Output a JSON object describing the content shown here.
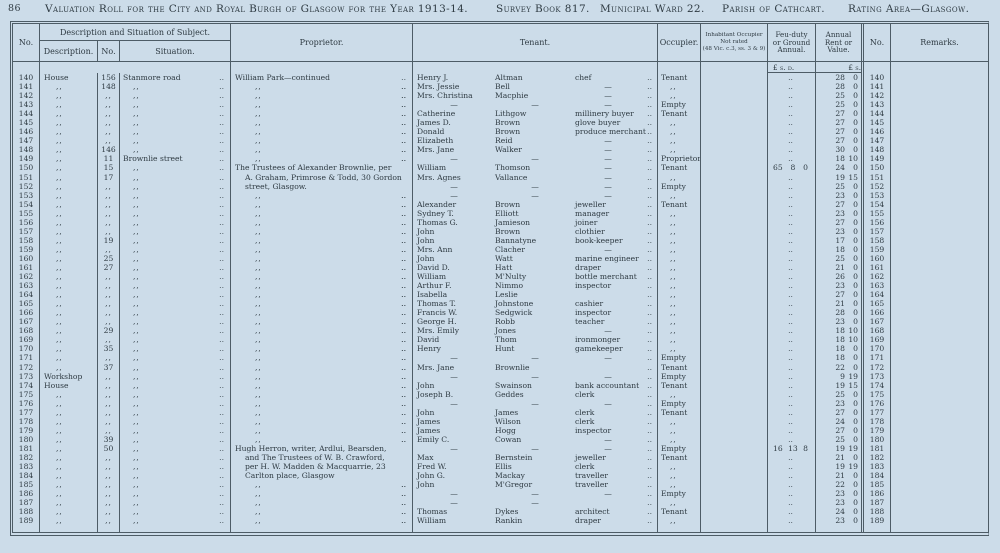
{
  "page": {
    "folio": "86",
    "title": "Valuation Roll for the City and Royal Burgh of Glasgow for the Year 1913-14.",
    "survey_book": "Survey Book 817.",
    "municipal_ward": "Municipal Ward 22.",
    "parish": "Parish of Cathcart.",
    "rating_area": "Rating Area—Glasgow."
  },
  "table": {
    "headers": {
      "no": "No.",
      "desc_group": "Description and Situation of Subject.",
      "description": "Description.",
      "street_no": "No.",
      "situation": "Situation.",
      "proprietor": "Proprietor.",
      "tenant": "Tenant.",
      "occupier": "Occupier.",
      "inhabitant": [
        "Inhabitant Occupier",
        "Not rated",
        "(48 Vic. c.3, ss. 3 & 9)"
      ],
      "feu": [
        "Feu-duty",
        "or Ground",
        "Annual."
      ],
      "annual": [
        "Annual",
        "Rent or",
        "Value."
      ],
      "no2": "No.",
      "remarks": "Remarks.",
      "feu_currency": "£ s. d.",
      "annual_currency": "£ s."
    },
    "rows": [
      {
        "n": "140",
        "d": "House",
        "sn": "156",
        "st": "Stanmore road",
        "pr": "William Park—continued",
        "pi": false,
        "pd": true,
        "t1": "Henry J.",
        "t2": "Altman",
        "t3": "chef",
        "oc": "Tenant",
        "feu": null,
        "rl": "28",
        "rs": "0"
      },
      {
        "n": "141",
        "d": ",,",
        "sn": "148",
        "st": ",,",
        "pr": null,
        "t1": "Mrs. Jessie",
        "t2": "Bell",
        "t3": "—",
        "oc": ",,",
        "feu": null,
        "rl": "28",
        "rs": "0"
      },
      {
        "n": "142",
        "d": ",,",
        "sn": ",,",
        "st": ",,",
        "pr": null,
        "t1": "Mrs. Christina",
        "t2": "Macphie",
        "t3": "—",
        "oc": ",,",
        "feu": null,
        "rl": "25",
        "rs": "0"
      },
      {
        "n": "143",
        "d": ",,",
        "sn": ",,",
        "st": ",,",
        "pr": null,
        "t1": "—",
        "t2": "—",
        "t3": "—",
        "oc": "Empty",
        "feu": null,
        "rl": "25",
        "rs": "0"
      },
      {
        "n": "144",
        "d": ",,",
        "sn": ",,",
        "st": ",,",
        "pr": null,
        "t1": "Catherine",
        "t2": "Lithgow",
        "t3": "millinery buyer",
        "oc": "Tenant",
        "feu": null,
        "rl": "27",
        "rs": "0"
      },
      {
        "n": "145",
        "d": ",,",
        "sn": ",,",
        "st": ",,",
        "pr": null,
        "t1": "James D.",
        "t2": "Brown",
        "t3": "glove buyer",
        "oc": ",,",
        "feu": null,
        "rl": "27",
        "rs": "0"
      },
      {
        "n": "146",
        "d": ",,",
        "sn": ",,",
        "st": ",,",
        "pr": null,
        "t1": "Donald",
        "t2": "Brown",
        "t3": "produce merchant",
        "oc": ",,",
        "feu": null,
        "rl": "27",
        "rs": "0"
      },
      {
        "n": "147",
        "d": ",,",
        "sn": ",,",
        "st": ",,",
        "pr": null,
        "t1": "Elizabeth",
        "t2": "Reid",
        "t3": "—",
        "oc": ",,",
        "feu": null,
        "rl": "27",
        "rs": "0"
      },
      {
        "n": "148",
        "d": ",,",
        "sn": "146",
        "st": ",,",
        "pr": null,
        "t1": "Mrs. Jane",
        "t2": "Walker",
        "t3": "—",
        "oc": ",,",
        "feu": null,
        "rl": "30",
        "rs": "0"
      },
      {
        "n": "149",
        "d": ",,",
        "sn": "11",
        "st": "Brownlie street",
        "pr": null,
        "t1": "—",
        "t2": "—",
        "t3": "—",
        "oc": "Proprietor",
        "feu": null,
        "rl": "18",
        "rs": "10"
      },
      {
        "n": "150",
        "d": ",,",
        "sn": "15",
        "st": ",,",
        "pr": "The Trustees of Alexander Brownlie, per",
        "pi": false,
        "pd": false,
        "t1": "William",
        "t2": "Thomson",
        "t3": "—",
        "oc": "Tenant",
        "feu": [
          "65",
          "8",
          "0"
        ],
        "rl": "24",
        "rs": "0"
      },
      {
        "n": "151",
        "d": ",,",
        "sn": "17",
        "st": ",,",
        "pr": "A. Graham, Primrose & Todd, 30 Gordon",
        "pi": true,
        "pd": false,
        "t1": "Mrs. Agnes",
        "t2": "Vallance",
        "t3": "—",
        "oc": ",,",
        "feu": null,
        "rl": "19",
        "rs": "15"
      },
      {
        "n": "152",
        "d": ",,",
        "sn": ",,",
        "st": ",,",
        "pr": "street, Glasgow.",
        "pi": true,
        "pd": false,
        "t1": "—",
        "t2": "—",
        "t3": "—",
        "oc": "Empty",
        "feu": null,
        "rl": "25",
        "rs": "0"
      },
      {
        "n": "153",
        "d": ",,",
        "sn": ",,",
        "st": ",,",
        "pr": null,
        "t1": "—",
        "t2": "—",
        "t3": "—",
        "oc": ",,",
        "feu": null,
        "rl": "23",
        "rs": "0"
      },
      {
        "n": "154",
        "d": ",,",
        "sn": ",,",
        "st": ",,",
        "pr": null,
        "t1": "Alexander",
        "t2": "Brown",
        "t3": "jeweller",
        "oc": "Tenant",
        "feu": null,
        "rl": "27",
        "rs": "0"
      },
      {
        "n": "155",
        "d": ",,",
        "sn": ",,",
        "st": ",,",
        "pr": null,
        "t1": "Sydney T.",
        "t2": "Elliott",
        "t3": "manager",
        "oc": ",,",
        "feu": null,
        "rl": "23",
        "rs": "0"
      },
      {
        "n": "156",
        "d": ",,",
        "sn": ",,",
        "st": ",,",
        "pr": null,
        "t1": "Thomas G.",
        "t2": "Jamieson",
        "t3": "joiner",
        "oc": ",,",
        "feu": null,
        "rl": "27",
        "rs": "0"
      },
      {
        "n": "157",
        "d": ",,",
        "sn": ",,",
        "st": ",,",
        "pr": null,
        "t1": "John",
        "t2": "Brown",
        "t3": "clothier",
        "oc": ",,",
        "feu": null,
        "rl": "23",
        "rs": "0"
      },
      {
        "n": "158",
        "d": ",,",
        "sn": "19",
        "st": ",,",
        "pr": null,
        "t1": "John",
        "t2": "Bannatyne",
        "t3": "book-keeper",
        "oc": ",,",
        "feu": null,
        "rl": "17",
        "rs": "0"
      },
      {
        "n": "159",
        "d": ",,",
        "sn": ",,",
        "st": ",,",
        "pr": null,
        "t1": "Mrs. Ann",
        "t2": "Clacher",
        "t3": "—",
        "oc": ",,",
        "feu": null,
        "rl": "18",
        "rs": "0"
      },
      {
        "n": "160",
        "d": ",,",
        "sn": "25",
        "st": ",,",
        "pr": null,
        "t1": "John",
        "t2": "Watt",
        "t3": "marine engineer",
        "oc": ",,",
        "feu": null,
        "rl": "25",
        "rs": "0"
      },
      {
        "n": "161",
        "d": ",,",
        "sn": "27",
        "st": ",,",
        "pr": null,
        "t1": "David D.",
        "t2": "Hatt",
        "t3": "draper",
        "oc": ",,",
        "feu": null,
        "rl": "21",
        "rs": "0"
      },
      {
        "n": "162",
        "d": ",,",
        "sn": ",,",
        "st": ",,",
        "pr": null,
        "t1": "William",
        "t2": "M'Nulty",
        "t3": "bottle merchant",
        "oc": ",,",
        "feu": null,
        "rl": "26",
        "rs": "0"
      },
      {
        "n": "163",
        "d": ",,",
        "sn": ",,",
        "st": ",,",
        "pr": null,
        "t1": "Arthur F.",
        "t2": "Nimmo",
        "t3": "inspector",
        "oc": ",,",
        "feu": null,
        "rl": "23",
        "rs": "0"
      },
      {
        "n": "164",
        "d": ",,",
        "sn": ",,",
        "st": ",,",
        "pr": null,
        "t1": "Isabella",
        "t2": "Leslie",
        "t3": "",
        "oc": ",,",
        "feu": null,
        "rl": "27",
        "rs": "0"
      },
      {
        "n": "165",
        "d": ",,",
        "sn": ",,",
        "st": ",,",
        "pr": null,
        "t1": "Thomas T.",
        "t2": "Johnstone",
        "t3": "cashier",
        "oc": ",,",
        "feu": null,
        "rl": "21",
        "rs": "0"
      },
      {
        "n": "166",
        "d": ",,",
        "sn": ",,",
        "st": ",,",
        "pr": null,
        "t1": "Francis W.",
        "t2": "Sedgwick",
        "t3": "inspector",
        "oc": ",,",
        "feu": null,
        "rl": "28",
        "rs": "0"
      },
      {
        "n": "167",
        "d": ",,",
        "sn": ",,",
        "st": ",,",
        "pr": null,
        "t1": "George H.",
        "t2": "Robb",
        "t3": "teacher",
        "oc": ",,",
        "feu": null,
        "rl": "23",
        "rs": "0"
      },
      {
        "n": "168",
        "d": ",,",
        "sn": "29",
        "st": ",,",
        "pr": null,
        "t1": "Mrs. Emily",
        "t2": "Jones",
        "t3": "—",
        "oc": ",,",
        "feu": null,
        "rl": "18",
        "rs": "10"
      },
      {
        "n": "169",
        "d": ",,",
        "sn": ",,",
        "st": ",,",
        "pr": null,
        "t1": "David",
        "t2": "Thom",
        "t3": "ironmonger",
        "oc": ",,",
        "feu": null,
        "rl": "18",
        "rs": "10"
      },
      {
        "n": "170",
        "d": ",,",
        "sn": "35",
        "st": ",,",
        "pr": null,
        "t1": "Henry",
        "t2": "Hunt",
        "t3": "gamekeeper",
        "oc": ",,",
        "feu": null,
        "rl": "18",
        "rs": "0"
      },
      {
        "n": "171",
        "d": ",,",
        "sn": ",,",
        "st": ",,",
        "pr": null,
        "t1": "—",
        "t2": "—",
        "t3": "—",
        "oc": "Empty",
        "feu": null,
        "rl": "18",
        "rs": "0"
      },
      {
        "n": "172",
        "d": ",,",
        "sn": "37",
        "st": ",,",
        "pr": null,
        "t1": "Mrs. Jane",
        "t2": "Brownlie",
        "t3": "",
        "oc": "Tenant",
        "feu": null,
        "rl": "22",
        "rs": "0"
      },
      {
        "n": "173",
        "d": "Workshop",
        "sn": ",,",
        "st": ",,",
        "pr": null,
        "t1": "—",
        "t2": "—",
        "t3": "—",
        "oc": "Empty",
        "feu": null,
        "rl": "9",
        "rs": "19"
      },
      {
        "n": "174",
        "d": "House",
        "sn": ",,",
        "st": ",,",
        "pr": null,
        "t1": "John",
        "t2": "Swainson",
        "t3": "bank accountant",
        "oc": "Tenant",
        "feu": null,
        "rl": "19",
        "rs": "15"
      },
      {
        "n": "175",
        "d": ",,",
        "sn": ",,",
        "st": ",,",
        "pr": null,
        "t1": "Joseph B.",
        "t2": "Geddes",
        "t3": "clerk",
        "oc": ",,",
        "feu": null,
        "rl": "25",
        "rs": "0"
      },
      {
        "n": "176",
        "d": ",,",
        "sn": ",,",
        "st": ",,",
        "pr": null,
        "t1": "—",
        "t2": "—",
        "t3": "—",
        "oc": "Empty",
        "feu": null,
        "rl": "23",
        "rs": "0"
      },
      {
        "n": "177",
        "d": ",,",
        "sn": ",,",
        "st": ",,",
        "pr": null,
        "t1": "John",
        "t2": "James",
        "t3": "clerk",
        "oc": "Tenant",
        "feu": null,
        "rl": "27",
        "rs": "0"
      },
      {
        "n": "178",
        "d": ",,",
        "sn": ",,",
        "st": ",,",
        "pr": null,
        "t1": "James",
        "t2": "Wilson",
        "t3": "clerk",
        "oc": ",,",
        "feu": null,
        "rl": "24",
        "rs": "0"
      },
      {
        "n": "179",
        "d": ",,",
        "sn": ",,",
        "st": ",,",
        "pr": null,
        "t1": "James",
        "t2": "Hogg",
        "t3": "inspector",
        "oc": ",,",
        "feu": null,
        "rl": "27",
        "rs": "0"
      },
      {
        "n": "180",
        "d": ",,",
        "sn": "39",
        "st": ",,",
        "pr": null,
        "t1": "Emily C.",
        "t2": "Cowan",
        "t3": "—",
        "oc": ",,",
        "feu": null,
        "rl": "25",
        "rs": "0"
      },
      {
        "n": "181",
        "d": ",,",
        "sn": "50",
        "st": ",,",
        "pr": "Hugh Herron, writer, Ardlui, Bearsden,",
        "pi": false,
        "pd": false,
        "t1": "—",
        "t2": "—",
        "t3": "—",
        "oc": "Empty",
        "feu": [
          "16",
          "13",
          "8"
        ],
        "rl": "19",
        "rs": "19"
      },
      {
        "n": "182",
        "d": ",,",
        "sn": ",,",
        "st": ",,",
        "pr": "and The Trustees of W. B. Crawford,",
        "pi": true,
        "pd": false,
        "t1": "Max",
        "t2": "Bernstein",
        "t3": "jeweller",
        "oc": "Tenant",
        "feu": null,
        "rl": "21",
        "rs": "0"
      },
      {
        "n": "183",
        "d": ",,",
        "sn": ",,",
        "st": ",,",
        "pr": "per H. W. Madden & Macquarrie, 23",
        "pi": true,
        "pd": false,
        "t1": "Fred W.",
        "t2": "Ellis",
        "t3": "clerk",
        "oc": ",,",
        "feu": null,
        "rl": "19",
        "rs": "19"
      },
      {
        "n": "184",
        "d": ",,",
        "sn": ",,",
        "st": ",,",
        "pr": "Carlton place, Glasgow",
        "pi": true,
        "pd": false,
        "t1": "John G.",
        "t2": "Mackay",
        "t3": "traveller",
        "oc": ",,",
        "feu": null,
        "rl": "21",
        "rs": "0"
      },
      {
        "n": "185",
        "d": ",,",
        "sn": ",,",
        "st": ",,",
        "pr": null,
        "t1": "John",
        "t2": "M'Gregor",
        "t3": "traveller",
        "oc": ",,",
        "feu": null,
        "rl": "22",
        "rs": "0"
      },
      {
        "n": "186",
        "d": ",,",
        "sn": ",,",
        "st": ",,",
        "pr": null,
        "t1": "—",
        "t2": "—",
        "t3": "—",
        "oc": "Empty",
        "feu": null,
        "rl": "23",
        "rs": "0"
      },
      {
        "n": "187",
        "d": ",,",
        "sn": ",,",
        "st": ",,",
        "pr": null,
        "t1": "—",
        "t2": "—",
        "t3": "",
        "oc": ",,",
        "feu": null,
        "rl": "23",
        "rs": "0"
      },
      {
        "n": "188",
        "d": ",,",
        "sn": ",,",
        "st": ",,",
        "pr": null,
        "t1": "Thomas",
        "t2": "Dykes",
        "t3": "architect",
        "oc": "Tenant",
        "feu": null,
        "rl": "24",
        "rs": "0"
      },
      {
        "n": "189",
        "d": ",,",
        "sn": ",,",
        "st": ",,",
        "pr": null,
        "t1": "William",
        "t2": "Rankin",
        "t3": "draper",
        "oc": ",,",
        "feu": null,
        "rl": "23",
        "rs": "0"
      }
    ]
  },
  "colors": {
    "paper": "#ccdce9",
    "ink": "#2e3a42",
    "line": "#4d5c66"
  }
}
